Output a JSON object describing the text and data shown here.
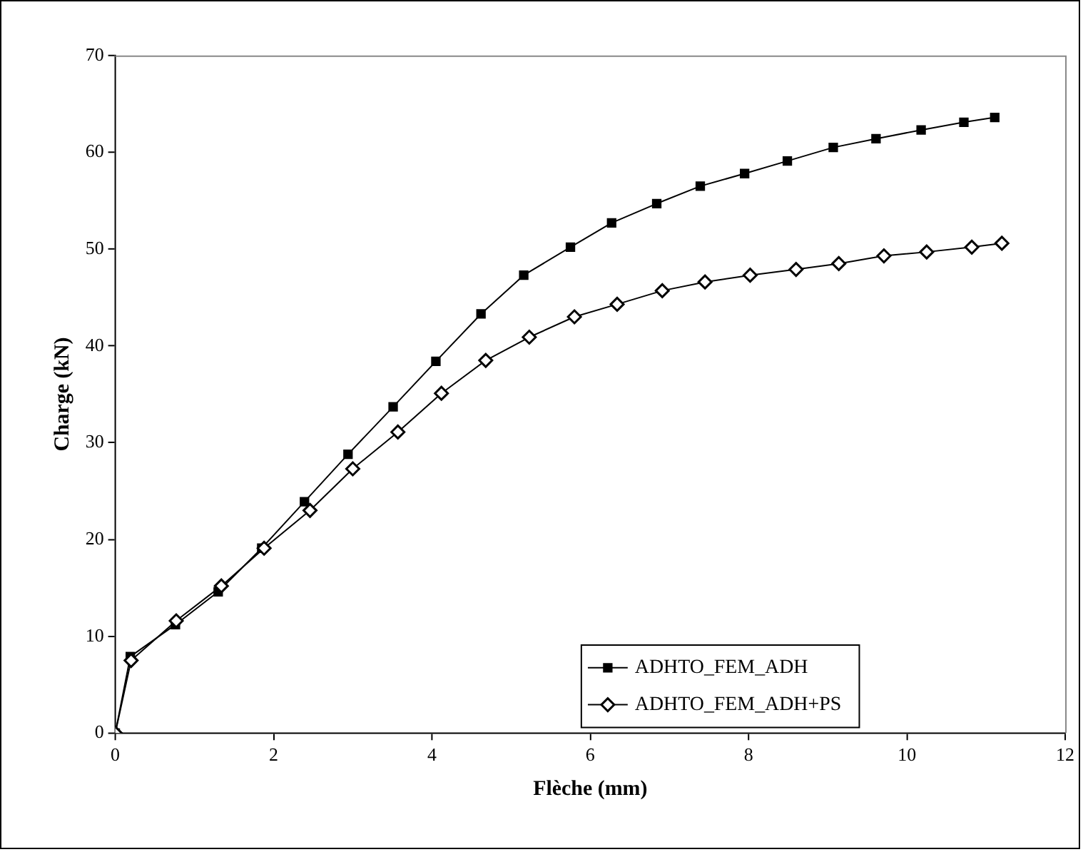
{
  "chart_data": {
    "type": "line",
    "xlabel": "Flèche (mm)",
    "ylabel": "Charge (kN)",
    "xlim": [
      0,
      12
    ],
    "xticks": [
      0,
      2,
      4,
      6,
      8,
      10,
      12
    ],
    "ylim": [
      0,
      70
    ],
    "yticks": [
      0,
      10,
      20,
      30,
      40,
      50,
      60,
      70
    ],
    "grid": false,
    "legend": "bottom right",
    "line_style": "solid",
    "series": [
      {
        "name": "ADHTO_FEM_ADH",
        "color": "#000000",
        "marker": "square",
        "x": [
          0,
          0.19,
          0.76,
          1.3,
          1.85,
          2.39,
          2.94,
          3.51,
          4.05,
          4.62,
          5.16,
          5.75,
          6.27,
          6.84,
          7.39,
          7.95,
          8.49,
          9.07,
          9.61,
          10.18,
          10.72,
          11.11
        ],
        "values": [
          0,
          7.9,
          11.2,
          14.6,
          19.1,
          23.9,
          28.8,
          33.7,
          38.4,
          43.3,
          47.3,
          50.2,
          52.7,
          54.7,
          56.5,
          57.8,
          59.1,
          60.5,
          61.4,
          62.3,
          63.1,
          63.6
        ]
      },
      {
        "name": "ADHTO_FEM_ADH+PS",
        "color": "#000000",
        "marker": "diamond",
        "x": [
          0,
          0.2,
          0.77,
          1.34,
          1.88,
          2.46,
          3.0,
          3.57,
          4.12,
          4.68,
          5.23,
          5.8,
          6.34,
          6.91,
          7.45,
          8.02,
          8.6,
          9.14,
          9.71,
          10.25,
          10.82,
          11.2
        ],
        "values": [
          0,
          7.5,
          11.6,
          15.2,
          19.1,
          23.0,
          27.3,
          31.1,
          35.1,
          38.5,
          40.9,
          43.0,
          44.3,
          45.7,
          46.6,
          47.3,
          47.9,
          48.5,
          49.3,
          49.7,
          50.2,
          50.6
        ]
      }
    ]
  }
}
